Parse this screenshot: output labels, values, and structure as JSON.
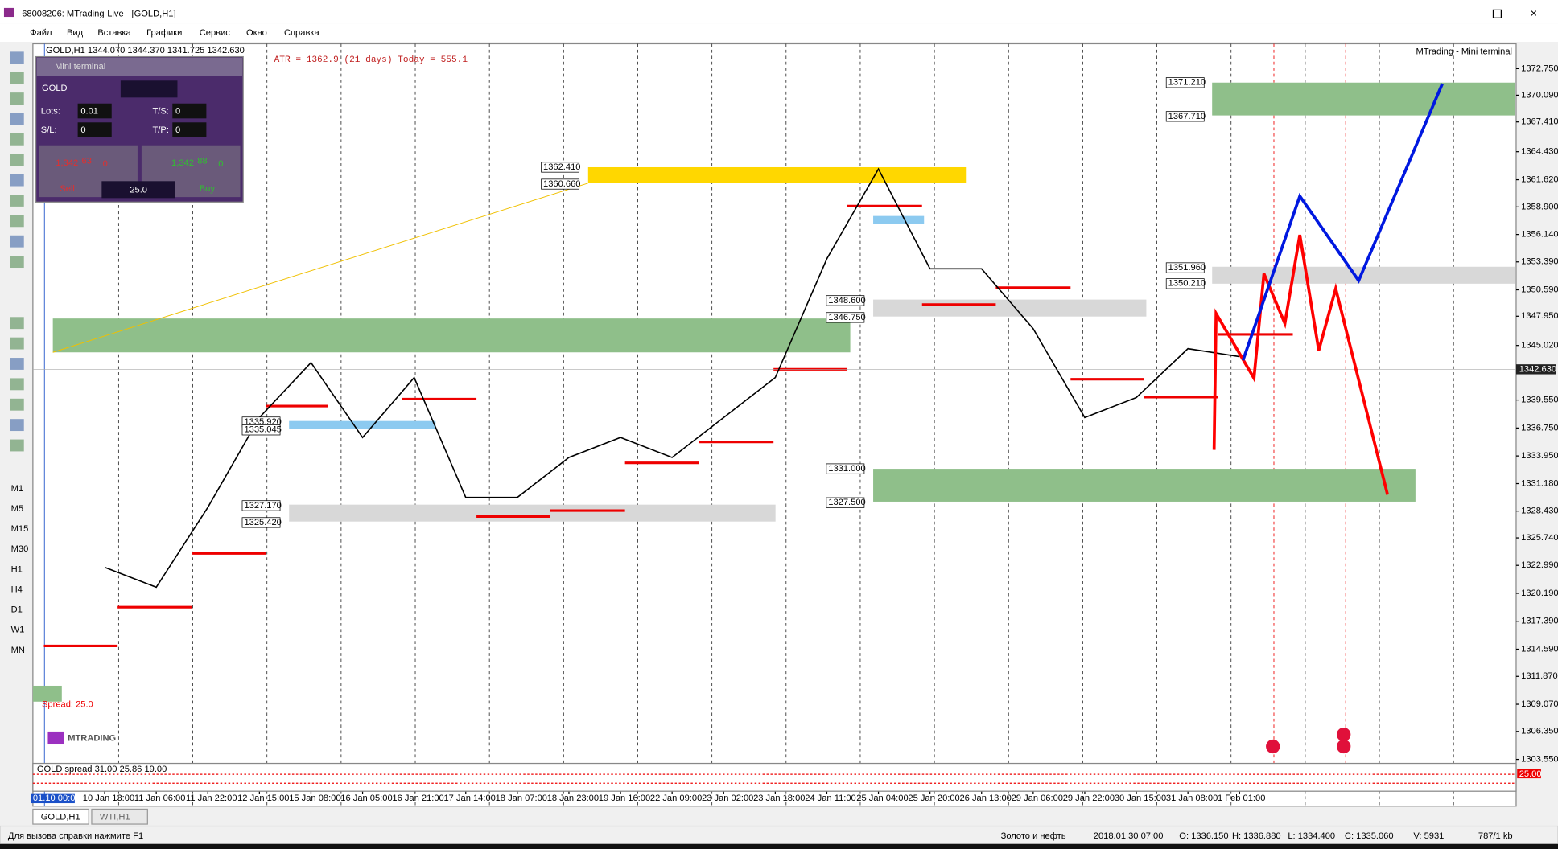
{
  "window": {
    "title": "68008206: MTrading-Live - [GOLD,H1]"
  },
  "menu": [
    "Файл",
    "Вид",
    "Вставка",
    "Графики",
    "Сервис",
    "Окно",
    "Справка"
  ],
  "chart_header": "GOLD,H1  1344.070 1344.370 1341.725 1342.630",
  "atr": "ATR = 1362.9  (21 days)  Today = 555.1",
  "brand": "MTrading - Mini terminal",
  "mini_terminal": {
    "title": "Mini terminal",
    "symbol": "GOLD",
    "lots_label": "Lots:",
    "lots": "0.01",
    "ts_label": "T/S:",
    "ts": "0",
    "sl_label": "S/L:",
    "sl": "0",
    "tp_label": "T/P:",
    "tp": "0",
    "sell_small": "1,342",
    "sell_big": "63",
    "sell_sup": "0",
    "buy_small": "1,342",
    "buy_big": "88",
    "buy_sup": "0",
    "sell": "Sell",
    "buy": "Buy",
    "spread": "25.0"
  },
  "spread_label": "Spread:  25.0",
  "logo": "MTRADING",
  "levels": [
    "1371.210",
    "1367.710",
    "1362.410",
    "1360.660",
    "1351.960",
    "1350.210",
    "1348.600",
    "1346.750",
    "1335.920",
    "1335.045",
    "1327.170",
    "1325.420",
    "1331.000",
    "1327.500"
  ],
  "chart_data": {
    "type": "line",
    "categories": [
      "10 Jan 13:00",
      "11 Jan 06:00",
      "11 Jan 22:00",
      "12 Jan 15:00",
      "15 Jan 08:00",
      "16 Jan 05:00",
      "16 Jan 21:00",
      "17 Jan 14:00",
      "18 Jan 07:00",
      "18 Jan 23:00",
      "19 Jan 16:00",
      "22 Jan 09:00",
      "23 Jan 02:00",
      "23 Jan 18:00",
      "24 Jan 11:00",
      "25 Jan 04:00",
      "25 Jan 20:00",
      "26 Jan 13:00",
      "29 Jan 06:00",
      "29 Jan 22:00",
      "30 Jan 15:00",
      "31 Jan 08:00",
      "1 Feb 01:00"
    ],
    "values": [
      1322.8,
      1320.8,
      1328.8,
      1337.8,
      1343.3,
      1335.8,
      1341.8,
      1329.8,
      1329.8,
      1333.8,
      1335.8,
      1333.8,
      1337.8,
      1341.8,
      1353.7,
      1362.7,
      1352.7,
      1352.7,
      1346.7,
      1337.8,
      1339.8,
      1344.7,
      1343.9
    ],
    "color": "#000000",
    "x_start_label": "01.10 00:00",
    "current": {
      "value": 1342.63,
      "label": "1342.630"
    },
    "ylim": [
      1303.35,
      1375.24
    ],
    "yticks": [
      {
        "value": 1372.75,
        "label": "1372.750"
      },
      {
        "value": 1370.09,
        "label": "1370.090"
      },
      {
        "value": 1367.41,
        "label": "1367.410"
      },
      {
        "value": 1364.43,
        "label": "1364.430"
      },
      {
        "value": 1361.62,
        "label": "1361.620"
      },
      {
        "value": 1358.9,
        "label": "1358.900"
      },
      {
        "value": 1356.14,
        "label": "1356.140"
      },
      {
        "value": 1353.39,
        "label": "1353.390"
      },
      {
        "value": 1350.59,
        "label": "1350.590"
      },
      {
        "value": 1347.95,
        "label": "1347.950"
      },
      {
        "value": 1345.02,
        "label": "1345.020"
      },
      {
        "value": 1339.55,
        "label": "1339.550"
      },
      {
        "value": 1336.75,
        "label": "1336.750"
      },
      {
        "value": 1333.95,
        "label": "1333.950"
      },
      {
        "value": 1331.18,
        "label": "1331.180"
      },
      {
        "value": 1328.43,
        "label": "1328.430"
      },
      {
        "value": 1325.74,
        "label": "1325.740"
      },
      {
        "value": 1322.99,
        "label": "1322.990"
      },
      {
        "value": 1320.19,
        "label": "1320.190"
      },
      {
        "value": 1317.39,
        "label": "1317.390"
      },
      {
        "value": 1314.59,
        "label": "1314.590"
      },
      {
        "value": 1311.87,
        "label": "1311.870"
      },
      {
        "value": 1309.07,
        "label": "1309.070"
      },
      {
        "value": 1306.35,
        "label": "1306.350"
      },
      {
        "value": 1303.55,
        "label": "1303.550"
      }
    ]
  },
  "indicator": {
    "label": "GOLD spread 31.00 25.86 19.00",
    "value_label": "25.00"
  },
  "timeframes": [
    "M1",
    "M5",
    "M15",
    "M30",
    "H1",
    "H4",
    "D1",
    "W1",
    "MN"
  ],
  "tabs": [
    "GOLD,H1",
    "WTI,H1"
  ],
  "status": {
    "help": "Для вызова справки нажмите F1",
    "profile": "Золото и нефть",
    "time": "2018.01.30 07:00",
    "open": "O: 1336.150",
    "high": "H: 1336.880",
    "low": "L: 1334.400",
    "close": "C: 1335.060",
    "volume": "V: 5931",
    "traffic": "787/1 kb"
  }
}
